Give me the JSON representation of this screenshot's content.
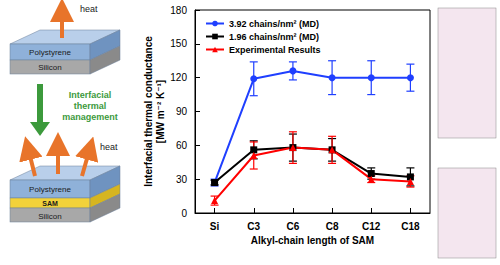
{
  "chart_data": {
    "type": "line",
    "categories": [
      "Si",
      "C3",
      "C6",
      "C8",
      "C12",
      "C18"
    ],
    "x_label": "Alkyl-chain length of SAM",
    "y_label": "Interfacial thermal conductance\n[MW m⁻² K⁻¹]",
    "ylim": [
      0,
      180
    ],
    "yticks": [
      0,
      30,
      60,
      90,
      120,
      150,
      180
    ],
    "grid": false,
    "legend": "upper left",
    "series": [
      {
        "name": "3.92 chains/nm² (MD)",
        "color": "#1f3fff",
        "marker": "circle",
        "line_style": "solid",
        "values": [
          27,
          119,
          126,
          120,
          120,
          120
        ],
        "errors": [
          3,
          15,
          8,
          15,
          15,
          12
        ]
      },
      {
        "name": "1.96 chains/nm² (MD)",
        "color": "#000000",
        "marker": "square",
        "line_style": "solid",
        "values": [
          27,
          56,
          58,
          56,
          35,
          32
        ],
        "errors": [
          2,
          8,
          12,
          10,
          5,
          8
        ]
      },
      {
        "name": "Experimental Results",
        "color": "#ff0000",
        "marker": "triangle",
        "line_style": "solid",
        "values": [
          11,
          51,
          58,
          56,
          30,
          28
        ],
        "errors": [
          4,
          12,
          14,
          12,
          3,
          5
        ]
      }
    ]
  },
  "diagram": {
    "top": {
      "heat": "heat",
      "layers": [
        "Polystyrene",
        "Silicon"
      ]
    },
    "arrow_label": "Interfacial thermal management",
    "bottom": {
      "heat": "heat",
      "layers": [
        "Polystyrene",
        "SAM",
        "Silicon"
      ]
    }
  }
}
